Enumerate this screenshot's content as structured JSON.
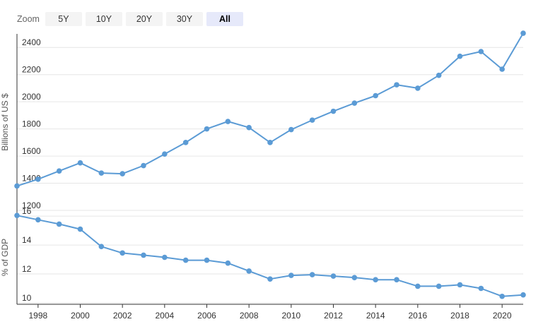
{
  "zoom": {
    "label": "Zoom",
    "buttons": [
      "5Y",
      "10Y",
      "20Y",
      "30Y",
      "All"
    ],
    "active": "All"
  },
  "colors": {
    "series": "#5b9bd5",
    "grid": "#e6e6e6",
    "axis": "#333333",
    "active_button": "#e6e9fa"
  },
  "chart_data": [
    {
      "type": "line",
      "ylabel": "Billions of US $",
      "ylim": [
        1200,
        2500
      ],
      "yticks": [
        1200,
        1400,
        1600,
        1800,
        2000,
        2200,
        2400
      ],
      "grid": true,
      "series": [
        {
          "x": [
            1997,
            1998,
            1999,
            2000,
            2001,
            2002,
            2003,
            2004,
            2005,
            2006,
            2007,
            2008,
            2009,
            2010,
            2011,
            2012,
            2013,
            2014,
            2015,
            2016,
            2017,
            2018,
            2019,
            2020,
            2021
          ],
          "values": [
            1380,
            1430,
            1490,
            1550,
            1475,
            1470,
            1530,
            1615,
            1700,
            1800,
            1855,
            1810,
            1700,
            1795,
            1865,
            1930,
            1990,
            2045,
            2125,
            2100,
            2195,
            2335,
            2370,
            2240,
            2505
          ]
        }
      ]
    },
    {
      "type": "line",
      "ylabel": "% of GDP",
      "ylim": [
        9.9,
        16.4
      ],
      "yticks": [
        10,
        12,
        14,
        16
      ],
      "xlim": [
        1997,
        2021
      ],
      "xticks": [
        1998,
        2000,
        2002,
        2004,
        2006,
        2008,
        2010,
        2012,
        2014,
        2016,
        2018,
        2020
      ],
      "grid": true,
      "series": [
        {
          "x": [
            1997,
            1998,
            1999,
            2000,
            2001,
            2002,
            2003,
            2004,
            2005,
            2006,
            2007,
            2008,
            2009,
            2010,
            2011,
            2012,
            2013,
            2014,
            2015,
            2016,
            2017,
            2018,
            2019,
            2020,
            2021
          ],
          "values": [
            16.05,
            15.75,
            15.45,
            15.1,
            13.9,
            13.45,
            13.3,
            13.15,
            12.95,
            12.95,
            12.75,
            12.2,
            11.65,
            11.9,
            11.95,
            11.85,
            11.75,
            11.6,
            11.6,
            11.15,
            11.15,
            11.25,
            11.0,
            10.45,
            10.55
          ]
        }
      ]
    }
  ]
}
